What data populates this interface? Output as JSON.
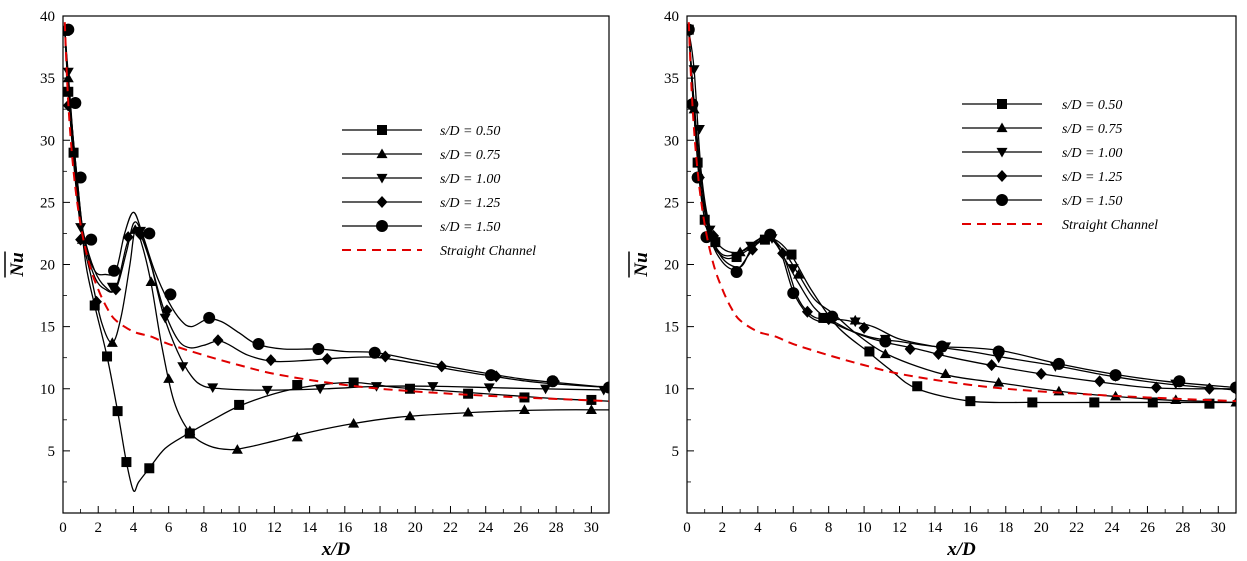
{
  "chart_data": [
    {
      "type": "line",
      "title": "",
      "xlabel": "x/D",
      "ylabel": "Nu",
      "xlim": [
        0,
        31
      ],
      "ylim": [
        0,
        40
      ],
      "xticks": [
        0,
        2,
        4,
        6,
        8,
        10,
        12,
        14,
        16,
        18,
        20,
        22,
        24,
        26,
        28,
        30
      ],
      "yticks": [
        5,
        10,
        15,
        20,
        25,
        30,
        35,
        40
      ],
      "grid": false,
      "legend_position": "upper-right",
      "series": [
        {
          "name": "s/D = 0.50",
          "marker": "square",
          "color": "#000000",
          "dash": "solid",
          "x": [
            0.1,
            0.3,
            0.6,
            0.9,
            1.3,
            1.8,
            2.5,
            3.1,
            3.6,
            4.0,
            4.3,
            4.9,
            5.8,
            7.0,
            8.5,
            10.0,
            12.0,
            14.0,
            16.5,
            19.0,
            22.0,
            25.0,
            28.0,
            31.0
          ],
          "y": [
            38.8,
            33.9,
            29.0,
            25.0,
            20.0,
            16.7,
            12.6,
            8.2,
            4.1,
            1.8,
            2.5,
            3.6,
            5.2,
            6.3,
            7.5,
            8.6,
            9.6,
            10.2,
            10.5,
            10.1,
            9.8,
            9.5,
            9.2,
            9.0
          ],
          "markers_x": [
            0.1,
            0.3,
            0.6,
            1.8,
            2.5,
            3.1,
            3.6,
            4.9,
            7.2,
            10.0,
            13.3,
            16.5,
            19.7,
            23.0,
            26.2,
            30.0
          ],
          "markers_y": [
            38.8,
            33.9,
            29.0,
            16.7,
            12.6,
            8.2,
            4.1,
            3.6,
            6.4,
            8.7,
            10.3,
            10.5,
            10.0,
            9.6,
            9.3,
            9.1
          ]
        },
        {
          "name": "s/D = 0.75",
          "marker": "triangle-up",
          "color": "#000000",
          "dash": "solid",
          "x": [
            0.1,
            0.5,
            1.0,
            1.6,
            2.2,
            2.8,
            3.3,
            3.8,
            4.1,
            4.5,
            5.0,
            5.6,
            6.3,
            7.2,
            8.3,
            9.5,
            10.5,
            12.0,
            14.0,
            16.5,
            19.0,
            22.0,
            25.0,
            28.0,
            31.0
          ],
          "y": [
            38.8,
            30.0,
            23.0,
            19.0,
            15.3,
            13.7,
            15.8,
            20.0,
            22.8,
            21.5,
            18.5,
            13.5,
            9.0,
            6.5,
            5.4,
            5.1,
            5.3,
            5.8,
            6.5,
            7.2,
            7.7,
            8.0,
            8.2,
            8.3,
            8.3
          ],
          "markers_x": [
            0.3,
            1.1,
            2.8,
            4.1,
            5.0,
            6.0,
            7.2,
            9.9,
            13.3,
            16.5,
            19.7,
            23.0,
            26.2,
            30.0
          ],
          "markers_y": [
            35.0,
            22.0,
            13.7,
            22.8,
            18.6,
            10.8,
            6.6,
            5.1,
            6.1,
            7.2,
            7.8,
            8.1,
            8.3,
            8.3
          ]
        },
        {
          "name": "s/D = 1.00",
          "marker": "triangle-down",
          "color": "#000000",
          "dash": "solid",
          "x": [
            0.1,
            0.4,
            0.8,
            1.2,
            1.8,
            2.4,
            3.0,
            3.6,
            4.0,
            4.4,
            5.0,
            5.7,
            6.5,
            7.3,
            8.0,
            9.0,
            10.5,
            12.5,
            15.0,
            18.0,
            21.0,
            24.0,
            27.0,
            31.0
          ],
          "y": [
            38.8,
            33.5,
            26.0,
            22.3,
            19.5,
            18.2,
            18.0,
            21.0,
            23.3,
            22.8,
            20.0,
            16.0,
            13.0,
            11.0,
            10.2,
            10.0,
            9.9,
            9.9,
            10.0,
            10.2,
            10.2,
            10.1,
            10.0,
            9.9
          ],
          "markers_x": [
            0.3,
            1.0,
            2.8,
            4.4,
            5.8,
            6.8,
            8.5,
            11.6,
            14.6,
            17.8,
            21.0,
            24.2,
            27.4,
            30.7
          ],
          "markers_y": [
            35.5,
            23.0,
            18.2,
            22.7,
            15.7,
            11.8,
            10.1,
            9.9,
            10.0,
            10.2,
            10.2,
            10.1,
            10.0,
            9.9
          ]
        },
        {
          "name": "s/D = 1.25",
          "marker": "diamond",
          "color": "#000000",
          "dash": "solid",
          "x": [
            0.1,
            0.4,
            0.8,
            1.2,
            1.8,
            2.4,
            3.0,
            3.6,
            4.0,
            4.4,
            5.0,
            5.7,
            6.5,
            7.2,
            8.0,
            9.0,
            10.5,
            12.0,
            14.0,
            16.0,
            18.0,
            21.0,
            24.0,
            27.0,
            31.0
          ],
          "y": [
            38.8,
            33.0,
            27.0,
            22.0,
            19.0,
            18.0,
            18.1,
            21.5,
            22.8,
            22.4,
            20.0,
            16.5,
            14.0,
            13.3,
            13.5,
            13.8,
            12.7,
            12.2,
            12.3,
            12.5,
            12.5,
            11.8,
            11.1,
            10.5,
            10.1
          ],
          "markers_x": [
            0.3,
            1.0,
            1.9,
            3.0,
            3.7,
            4.4,
            5.9,
            8.8,
            11.8,
            15.0,
            18.3,
            21.5,
            24.6,
            27.9,
            31.0
          ],
          "markers_y": [
            32.8,
            22.0,
            17.0,
            18.0,
            22.2,
            22.4,
            16.3,
            13.9,
            12.3,
            12.4,
            12.6,
            11.8,
            11.0,
            10.6,
            10.1
          ]
        },
        {
          "name": "s/D = 1.50",
          "marker": "circle",
          "color": "#000000",
          "dash": "solid",
          "x": [
            0.1,
            0.4,
            0.8,
            1.2,
            1.8,
            2.4,
            3.0,
            3.5,
            4.0,
            4.5,
            5.2,
            6.0,
            6.7,
            7.3,
            8.2,
            9.0,
            10.0,
            11.0,
            12.5,
            14.5,
            16.0,
            17.8,
            20.0,
            23.0,
            26.0,
            28.0,
            31.0
          ],
          "y": [
            38.8,
            33.0,
            27.0,
            22.0,
            19.5,
            19.2,
            19.5,
            22.5,
            24.2,
            22.5,
            19.5,
            17.0,
            15.5,
            15.0,
            15.6,
            15.4,
            14.5,
            13.6,
            13.2,
            13.2,
            13.0,
            12.9,
            12.3,
            11.5,
            10.8,
            10.5,
            10.1
          ],
          "markers_x": [
            0.3,
            0.7,
            1.0,
            1.6,
            2.9,
            4.9,
            6.1,
            8.3,
            11.1,
            14.5,
            17.7,
            24.3,
            27.8,
            31.0
          ],
          "markers_y": [
            38.9,
            33.0,
            27.0,
            22.0,
            19.5,
            22.5,
            17.6,
            15.7,
            13.6,
            13.2,
            12.9,
            11.1,
            10.6,
            10.1
          ]
        },
        {
          "name": "Straight Channel",
          "marker": "none",
          "color": "#e00000",
          "dash": "dashed",
          "x": [
            0.1,
            0.3,
            0.6,
            1.0,
            1.5,
            2.0,
            2.5,
            3.0,
            4.0,
            5.0,
            6.0,
            8.0,
            10.0,
            12.0,
            15.0,
            18.0,
            22.0,
            26.0,
            31.0
          ],
          "y": [
            39.5,
            33.0,
            27.5,
            23.2,
            20.0,
            18.0,
            16.5,
            15.5,
            14.6,
            14.2,
            13.6,
            12.7,
            11.9,
            11.2,
            10.5,
            10.0,
            9.6,
            9.3,
            9.0
          ]
        }
      ]
    },
    {
      "type": "line",
      "title": "",
      "xlabel": "x/D",
      "ylabel": "Nu",
      "xlim": [
        0,
        31
      ],
      "ylim": [
        0,
        40
      ],
      "xticks": [
        0,
        2,
        4,
        6,
        8,
        10,
        12,
        14,
        16,
        18,
        20,
        22,
        24,
        26,
        28,
        30
      ],
      "yticks": [
        5,
        10,
        15,
        20,
        25,
        30,
        35,
        40
      ],
      "grid": false,
      "legend_position": "upper-right",
      "series": [
        {
          "name": "s/D = 0.50",
          "marker": "square",
          "color": "#000000",
          "dash": "solid",
          "x": [
            0.1,
            0.6,
            1.0,
            1.5,
            2.2,
            3.0,
            3.8,
            4.5,
            5.2,
            6.0,
            7.0,
            8.5,
            10.2,
            11.5,
            13.0,
            16.0,
            19.5,
            23.0,
            26.5,
            31.0
          ],
          "y": [
            38.8,
            28.2,
            23.6,
            21.5,
            20.5,
            20.8,
            21.5,
            22.1,
            21.8,
            20.5,
            18.0,
            15.0,
            13.0,
            11.5,
            10.0,
            9.0,
            8.9,
            8.9,
            8.9,
            8.9
          ],
          "markers_x": [
            0.1,
            0.6,
            1.0,
            1.6,
            2.8,
            4.4,
            5.9,
            7.7,
            10.3,
            13.0,
            16.0,
            19.5,
            23.0,
            26.3,
            29.5
          ],
          "markers_y": [
            38.9,
            28.2,
            23.6,
            21.8,
            20.6,
            22.0,
            20.8,
            15.7,
            13.0,
            10.2,
            9.0,
            8.9,
            8.9,
            8.9,
            8.8
          ]
        },
        {
          "name": "s/D = 0.75",
          "marker": "triangle-up",
          "color": "#000000",
          "dash": "solid",
          "x": [
            0.1,
            0.4,
            0.8,
            1.3,
            2.0,
            3.0,
            4.0,
            4.7,
            5.5,
            6.3,
            7.2,
            8.3,
            9.5,
            11.0,
            13.0,
            15.0,
            18.0,
            21.0,
            24.0,
            27.0,
            31.0
          ],
          "y": [
            38.8,
            32.0,
            26.0,
            22.5,
            20.8,
            21.0,
            22.0,
            22.2,
            21.0,
            19.2,
            17.2,
            16.0,
            14.5,
            13.0,
            11.8,
            11.0,
            10.4,
            9.8,
            9.4,
            9.1,
            8.9
          ],
          "markers_x": [
            0.4,
            1.3,
            3.0,
            4.7,
            6.3,
            9.5,
            11.2,
            14.6,
            17.6,
            21.0,
            24.2,
            27.6,
            31.0
          ],
          "markers_y": [
            32.5,
            22.5,
            21.0,
            22.2,
            19.2,
            15.5,
            12.8,
            11.2,
            10.5,
            9.8,
            9.4,
            9.1,
            8.9
          ]
        },
        {
          "name": "s/D = 1.00",
          "marker": "triangle-down",
          "color": "#000000",
          "dash": "solid",
          "x": [
            0.1,
            0.4,
            0.8,
            1.3,
            2.0,
            3.0,
            4.0,
            4.8,
            5.5,
            6.3,
            7.2,
            8.0,
            9.0,
            10.5,
            12.0,
            14.0,
            16.0,
            18.0,
            21.0,
            24.0,
            27.0,
            31.0
          ],
          "y": [
            38.8,
            35.7,
            27.5,
            23.0,
            21.3,
            21.0,
            21.8,
            22.0,
            20.5,
            18.5,
            16.5,
            15.7,
            15.5,
            15.0,
            14.0,
            13.4,
            13.0,
            12.5,
            11.8,
            11.0,
            10.4,
            9.9
          ],
          "markers_x": [
            0.4,
            0.7,
            1.3,
            3.6,
            4.8,
            6.0,
            9.5,
            11.2,
            14.6,
            17.6,
            20.8,
            24.2,
            27.6,
            31.0
          ],
          "markers_y": [
            35.7,
            30.9,
            22.8,
            21.5,
            22.1,
            19.7,
            15.4,
            14.0,
            13.4,
            12.5,
            11.8,
            11.0,
            10.4,
            9.9
          ]
        },
        {
          "name": "s/D = 1.25",
          "marker": "diamond",
          "color": "#000000",
          "dash": "solid",
          "x": [
            0.1,
            0.4,
            0.8,
            1.3,
            2.0,
            3.0,
            3.6,
            4.2,
            4.8,
            5.5,
            6.2,
            6.8,
            7.3,
            8.0,
            9.5,
            11.0,
            13.0,
            15.0,
            17.5,
            20.0,
            23.0,
            26.0,
            28.5,
            31.0
          ],
          "y": [
            38.8,
            33.0,
            27.0,
            22.8,
            20.5,
            19.8,
            21.2,
            22.2,
            22.0,
            20.5,
            17.5,
            16.2,
            15.7,
            15.6,
            14.5,
            13.8,
            13.2,
            12.5,
            11.8,
            11.2,
            10.6,
            10.1,
            10.0,
            10.0
          ],
          "markers_x": [
            0.3,
            0.7,
            1.5,
            3.7,
            4.5,
            5.4,
            6.8,
            8.0,
            10.0,
            12.6,
            14.2,
            17.2,
            20.0,
            23.3,
            26.5,
            29.5
          ],
          "markers_y": [
            33.0,
            27.0,
            22.3,
            21.2,
            22.1,
            20.9,
            16.2,
            15.6,
            14.9,
            13.2,
            12.8,
            11.9,
            11.2,
            10.6,
            10.1,
            10.0
          ]
        },
        {
          "name": "s/D = 1.50",
          "marker": "circle",
          "color": "#000000",
          "dash": "solid",
          "x": [
            0.1,
            0.4,
            0.8,
            1.3,
            2.0,
            2.8,
            3.5,
            4.2,
            4.7,
            5.3,
            6.0,
            6.8,
            7.5,
            8.2,
            9.0,
            10.5,
            12.0,
            14.0,
            16.0,
            18.0,
            21.0,
            24.0,
            27.0,
            31.0
          ],
          "y": [
            38.8,
            33.0,
            26.8,
            22.3,
            20.2,
            19.6,
            20.8,
            22.1,
            22.4,
            21.0,
            17.8,
            16.0,
            15.4,
            15.3,
            14.8,
            14.1,
            13.8,
            13.4,
            13.3,
            13.0,
            12.0,
            11.2,
            10.6,
            10.1
          ],
          "markers_x": [
            0.1,
            0.3,
            0.6,
            1.1,
            2.8,
            4.7,
            6.0,
            8.2,
            11.2,
            14.4,
            17.6,
            21.0,
            24.2,
            27.8,
            31.0
          ],
          "markers_y": [
            38.9,
            32.9,
            27.0,
            22.2,
            19.4,
            22.4,
            17.7,
            15.8,
            13.8,
            13.4,
            13.0,
            12.0,
            11.1,
            10.6,
            10.1
          ]
        },
        {
          "name": "Straight Channel",
          "marker": "none",
          "color": "#e00000",
          "dash": "dashed",
          "x": [
            0.1,
            0.3,
            0.6,
            1.0,
            1.5,
            2.0,
            2.5,
            3.0,
            4.0,
            5.0,
            6.0,
            8.0,
            10.0,
            12.0,
            15.0,
            18.0,
            22.0,
            26.0,
            31.0
          ],
          "y": [
            39.5,
            33.0,
            27.5,
            23.2,
            20.0,
            18.0,
            16.5,
            15.5,
            14.6,
            14.2,
            13.6,
            12.7,
            11.9,
            11.2,
            10.5,
            10.0,
            9.6,
            9.3,
            9.0
          ]
        }
      ]
    }
  ]
}
